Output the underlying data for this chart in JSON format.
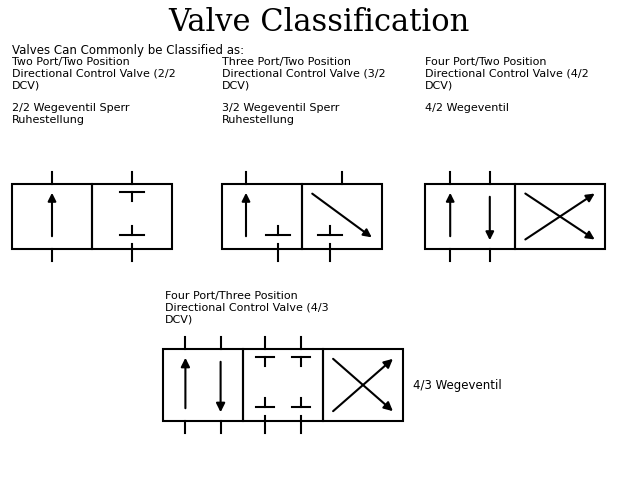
{
  "title": "Valve Classification",
  "subtitle": "Valves Can Commonly be Classified as:",
  "bg_color": "#ffffff",
  "text_color": "#000000",
  "valve_labels": {
    "v22": [
      "Two Port/Two Position",
      "Directional Control Valve (2/2",
      "DCV)",
      "",
      "2/2 Wegeventil Sperr",
      "Ruhestellung"
    ],
    "v32": [
      "Three Port/Two Position",
      "Directional Control Valve (3/2",
      "DCV)",
      "",
      "3/2 Wegeventil Sperr",
      "Ruhestellung"
    ],
    "v42": [
      "Four Port/Two Position",
      "Directional Control Valve (4/2",
      "DCV)",
      "",
      "4/2 Wegeventil"
    ],
    "v43": [
      "Four Port/Three Position",
      "Directional Control Valve (4/3",
      "DCV)"
    ],
    "v43_label": "4/3 Wegeventil"
  },
  "lw": 1.5
}
